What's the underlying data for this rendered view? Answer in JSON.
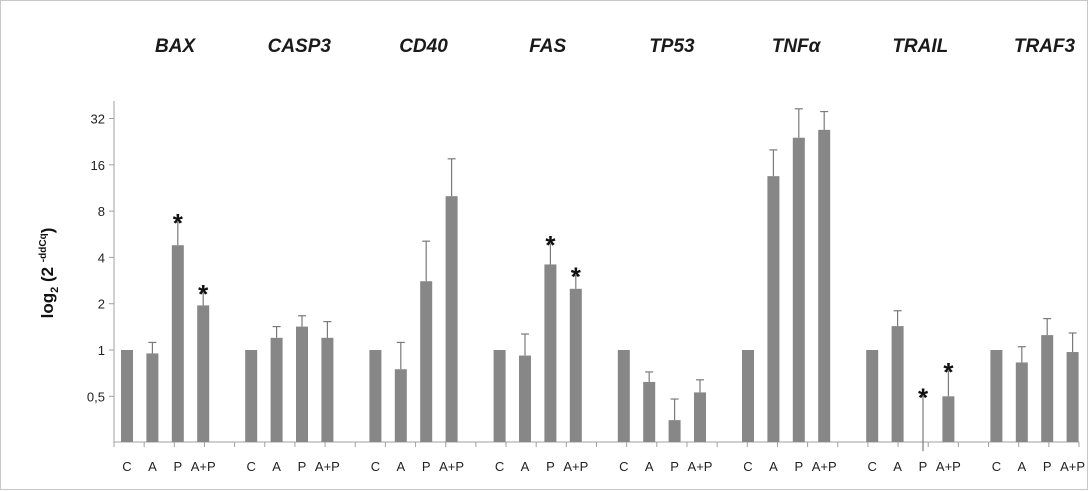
{
  "chart_data": {
    "type": "bar",
    "y_scale": "log2",
    "y_ticks": [
      0.5,
      1,
      2,
      4,
      8,
      16,
      32
    ],
    "y_tick_labels": [
      "0,5",
      "1",
      "2",
      "4",
      "8",
      "16",
      "32"
    ],
    "ylim": [
      0.25,
      40
    ],
    "ylabel": {
      "prefix": "log",
      "sub": "2",
      "mid": " (2 ",
      "sup": "-ddCq",
      "suffix": ")"
    },
    "conditions": [
      "C",
      "A",
      "P",
      "A+P"
    ],
    "bar_color": "#878787",
    "grid": false,
    "groups": [
      {
        "gene": "BAX",
        "values": [
          1,
          0.95,
          4.8,
          1.95
        ],
        "errors": [
          0,
          0.17,
          2.0,
          0.4
        ],
        "significant": [
          false,
          false,
          true,
          true
        ]
      },
      {
        "gene": "CASP3",
        "values": [
          1,
          1.2,
          1.42,
          1.2
        ],
        "errors": [
          0,
          0.22,
          0.25,
          0.33
        ],
        "significant": [
          false,
          false,
          false,
          false
        ]
      },
      {
        "gene": "CD40",
        "values": [
          1,
          0.75,
          2.8,
          10
        ],
        "errors": [
          0,
          0.37,
          2.3,
          7.5
        ],
        "significant": [
          false,
          false,
          false,
          false
        ]
      },
      {
        "gene": "FAS",
        "values": [
          1,
          0.92,
          3.6,
          2.5
        ],
        "errors": [
          0,
          0.35,
          1.3,
          0.55
        ],
        "significant": [
          false,
          false,
          true,
          true
        ]
      },
      {
        "gene": "TP53",
        "values": [
          1,
          0.62,
          0.35,
          0.53
        ],
        "errors": [
          0,
          0.1,
          0.13,
          0.11
        ],
        "significant": [
          false,
          false,
          false,
          false
        ]
      },
      {
        "gene": "TNFα",
        "values": [
          1,
          13.5,
          24,
          27
        ],
        "errors": [
          0,
          6.5,
          13,
          8.5
        ],
        "significant": [
          false,
          false,
          false,
          false
        ]
      },
      {
        "gene": "TRAIL",
        "values": [
          1,
          1.43,
          0.22,
          0.5
        ],
        "errors": [
          0,
          0.37,
          0.28,
          0.23
        ],
        "significant": [
          false,
          false,
          true,
          true
        ]
      },
      {
        "gene": "TRAF3",
        "values": [
          1,
          0.83,
          1.25,
          0.97
        ],
        "errors": [
          0,
          0.22,
          0.35,
          0.32
        ],
        "significant": [
          false,
          false,
          false,
          false
        ]
      }
    ]
  }
}
